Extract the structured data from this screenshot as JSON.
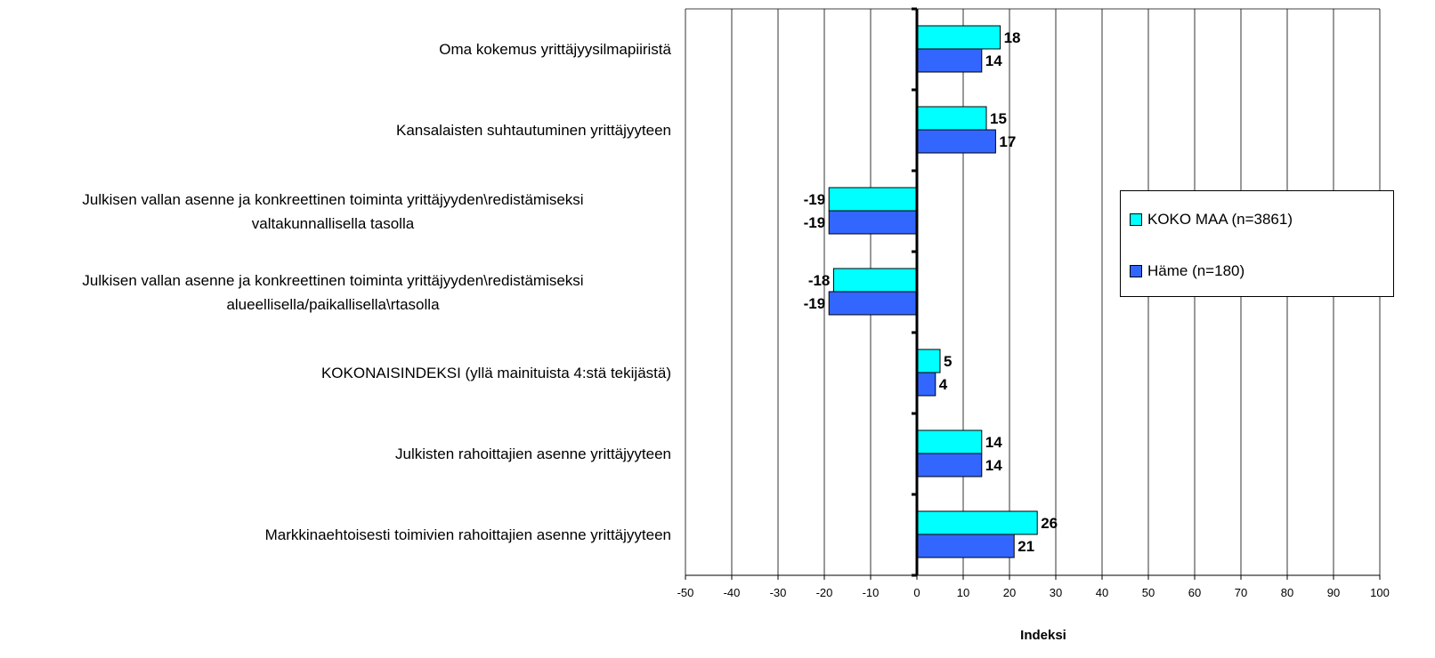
{
  "chart_data": {
    "type": "bar",
    "orientation": "horizontal",
    "categories": [
      "Oma kokemus yrittäjyysilmapiiristä",
      "Kansalaisten suhtautuminen yrittäjyyteen",
      "Julkisen vallan asenne ja konkreettinen toiminta yrittäjyyden\\redistämiseksi valtakunnallisella tasolla",
      "Julkisen vallan asenne ja konkreettinen toiminta yrittäjyyden\\redistämiseksi alueellisella/paikallisella\\rtasolla",
      "KOKONAISINDEKSI (yllä mainituista 4:stä tekijästä)",
      "Julkisten rahoittajien asenne yrittäjyyteen",
      "Markkinaehtoisesti toimivien rahoittajien asenne yrittäjyyteen"
    ],
    "category_lines": [
      [
        "Oma kokemus yrittäjyysilmapiiristä"
      ],
      [
        "Kansalaisten suhtautuminen yrittäjyyteen"
      ],
      [
        "Julkisen vallan asenne ja konkreettinen toiminta yrittäjyyden\\redistämiseksi",
        "valtakunnallisella tasolla"
      ],
      [
        "Julkisen vallan asenne ja konkreettinen toiminta yrittäjyyden\\redistämiseksi",
        "alueellisella/paikallisella\\rtasolla"
      ],
      [
        "KOKONAISINDEKSI (yllä mainituista 4:stä tekijästä)"
      ],
      [
        "Julkisten rahoittajien asenne yrittäjyyteen"
      ],
      [
        "Markkinaehtoisesti toimivien rahoittajien asenne yrittäjyyteen"
      ]
    ],
    "series": [
      {
        "name": "KOKO MAA (n=3861)",
        "color": "#00FFFF",
        "values": [
          18,
          15,
          -19,
          -18,
          5,
          14,
          26
        ]
      },
      {
        "name": "Häme (n=180)",
        "color": "#3366FF",
        "values": [
          14,
          17,
          -19,
          -19,
          4,
          14,
          21
        ]
      }
    ],
    "xlabel": "Indeksi",
    "xlim": [
      -50,
      100
    ],
    "xticks": [
      -50,
      -40,
      -30,
      -20,
      -10,
      0,
      10,
      20,
      30,
      40,
      50,
      60,
      70,
      80,
      90,
      100
    ],
    "grid": true,
    "legend_position": "right"
  }
}
